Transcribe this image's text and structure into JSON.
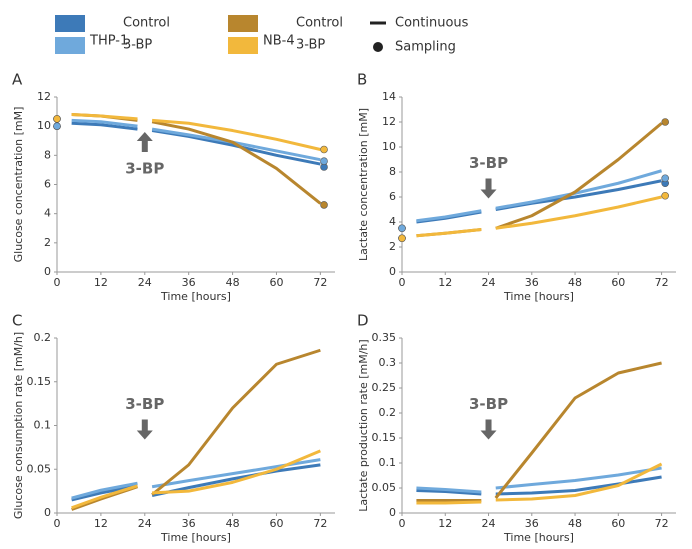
{
  "legend": {
    "groups": [
      {
        "label": "THP-1",
        "items": [
          {
            "text": "Control",
            "color": "#3d7ab8"
          },
          {
            "text": "3-BP",
            "color": "#6fa9dc"
          }
        ]
      },
      {
        "label": "NB-4",
        "items": [
          {
            "text": "Control",
            "color": "#b8862e"
          },
          {
            "text": "3-BP",
            "color": "#f2b83c"
          }
        ]
      }
    ],
    "line_label": "Continuous",
    "point_label": "Sampling"
  },
  "chart_data": [
    {
      "type": "line",
      "panel": "A",
      "xlabel": "Time [hours]",
      "ylabel": "Glucose concentration [mM]",
      "annotation": {
        "text": "3-BP",
        "x": 24,
        "direction": "up"
      },
      "xlim": [
        0,
        76
      ],
      "xticks": [
        0,
        12,
        24,
        36,
        48,
        60,
        72
      ],
      "ylim": [
        0,
        12
      ],
      "yticks": [
        0,
        2,
        4,
        6,
        8,
        10,
        12
      ],
      "x": [
        4,
        12,
        22,
        24,
        26,
        36,
        48,
        60,
        72
      ],
      "series": [
        {
          "color": "#3d7ab8",
          "values": [
            10.2,
            10.1,
            9.8,
            null,
            9.7,
            9.3,
            8.7,
            8.0,
            7.4
          ],
          "sample_x": [
            0,
            73
          ],
          "samples": [
            10.0,
            7.2
          ]
        },
        {
          "color": "#6fa9dc",
          "values": [
            10.4,
            10.3,
            10.0,
            null,
            9.8,
            9.4,
            8.9,
            8.3,
            7.7
          ],
          "sample_x": [
            0,
            73
          ],
          "samples": [
            10.0,
            7.6
          ]
        },
        {
          "color": "#b8862e",
          "values": [
            10.8,
            10.7,
            10.4,
            null,
            10.3,
            9.8,
            8.9,
            7.1,
            4.7
          ],
          "sample_x": [
            0,
            73
          ],
          "samples": [
            10.5,
            4.6
          ]
        },
        {
          "color": "#f2b83c",
          "values": [
            10.8,
            10.7,
            10.5,
            null,
            10.4,
            10.2,
            9.7,
            9.1,
            8.4
          ],
          "sample_x": [
            0,
            73
          ],
          "samples": [
            10.5,
            8.4
          ]
        }
      ]
    },
    {
      "type": "line",
      "panel": "B",
      "xlabel": "Time [hours]",
      "ylabel": "Lactate concentration [mM]",
      "annotation": {
        "text": "3-BP",
        "x": 24,
        "direction": "down"
      },
      "xlim": [
        0,
        76
      ],
      "xticks": [
        0,
        12,
        24,
        36,
        48,
        60,
        72
      ],
      "ylim": [
        0,
        14
      ],
      "yticks": [
        0,
        2,
        4,
        6,
        8,
        10,
        12,
        14
      ],
      "x": [
        4,
        12,
        22,
        24,
        26,
        36,
        48,
        60,
        72
      ],
      "series": [
        {
          "color": "#3d7ab8",
          "values": [
            4.0,
            4.3,
            4.8,
            null,
            5.0,
            5.5,
            6.0,
            6.6,
            7.3
          ],
          "sample_x": [
            0,
            73
          ],
          "samples": [
            3.5,
            7.1
          ]
        },
        {
          "color": "#6fa9dc",
          "values": [
            4.1,
            4.4,
            4.9,
            null,
            5.1,
            5.6,
            6.3,
            7.1,
            8.1
          ],
          "sample_x": [
            0,
            73
          ],
          "samples": [
            3.5,
            7.5
          ]
        },
        {
          "color": "#b8862e",
          "values": [
            2.9,
            3.1,
            3.4,
            null,
            3.5,
            4.5,
            6.4,
            9.0,
            11.9
          ],
          "sample_x": [
            0,
            73
          ],
          "samples": [
            2.7,
            12.0
          ]
        },
        {
          "color": "#f2b83c",
          "values": [
            2.9,
            3.1,
            3.4,
            null,
            3.5,
            3.9,
            4.5,
            5.2,
            6.0
          ],
          "sample_x": [
            0,
            73
          ],
          "samples": [
            2.7,
            6.1
          ]
        }
      ]
    },
    {
      "type": "line",
      "panel": "C",
      "xlabel": "Time [hours]",
      "ylabel": "Glucose consumption rate [mM/h]",
      "annotation": {
        "text": "3-BP",
        "x": 24,
        "direction": "down"
      },
      "xlim": [
        0,
        76
      ],
      "xticks": [
        0,
        12,
        24,
        36,
        48,
        60,
        72
      ],
      "ylim": [
        0,
        0.2
      ],
      "yticks": [
        0,
        0.05,
        0.1,
        0.15,
        0.2
      ],
      "x": [
        4,
        12,
        22,
        24,
        26,
        36,
        48,
        60,
        72
      ],
      "series": [
        {
          "color": "#3d7ab8",
          "values": [
            0.015,
            0.023,
            0.031,
            null,
            0.02,
            0.029,
            0.039,
            0.048,
            0.055
          ]
        },
        {
          "color": "#6fa9dc",
          "values": [
            0.017,
            0.026,
            0.034,
            null,
            0.03,
            0.037,
            0.045,
            0.053,
            0.061
          ]
        },
        {
          "color": "#b8862e",
          "values": [
            0.004,
            0.016,
            0.03,
            null,
            0.021,
            0.055,
            0.12,
            0.17,
            0.186
          ]
        },
        {
          "color": "#f2b83c",
          "values": [
            0.006,
            0.018,
            0.031,
            null,
            0.023,
            0.025,
            0.035,
            0.05,
            0.071
          ]
        }
      ]
    },
    {
      "type": "line",
      "panel": "D",
      "xlabel": "Time [hours]",
      "ylabel": "Lactate production rate [mM/h]",
      "annotation": {
        "text": "3-BP",
        "x": 24,
        "direction": "down"
      },
      "xlim": [
        0,
        76
      ],
      "xticks": [
        0,
        12,
        24,
        36,
        48,
        60,
        72
      ],
      "ylim": [
        0,
        0.35
      ],
      "yticks": [
        0,
        0.05,
        0.1,
        0.15,
        0.2,
        0.25,
        0.3,
        0.35
      ],
      "x": [
        4,
        12,
        22,
        24,
        26,
        36,
        48,
        60,
        72
      ],
      "series": [
        {
          "color": "#3d7ab8",
          "values": [
            0.045,
            0.043,
            0.038,
            null,
            0.038,
            0.04,
            0.045,
            0.058,
            0.072
          ]
        },
        {
          "color": "#6fa9dc",
          "values": [
            0.05,
            0.047,
            0.042,
            null,
            0.05,
            0.057,
            0.065,
            0.076,
            0.09
          ]
        },
        {
          "color": "#b8862e",
          "values": [
            0.025,
            0.025,
            0.025,
            null,
            0.03,
            0.12,
            0.23,
            0.28,
            0.3
          ]
        },
        {
          "color": "#f2b83c",
          "values": [
            0.02,
            0.02,
            0.022,
            null,
            0.026,
            0.028,
            0.035,
            0.055,
            0.098
          ]
        }
      ]
    }
  ]
}
